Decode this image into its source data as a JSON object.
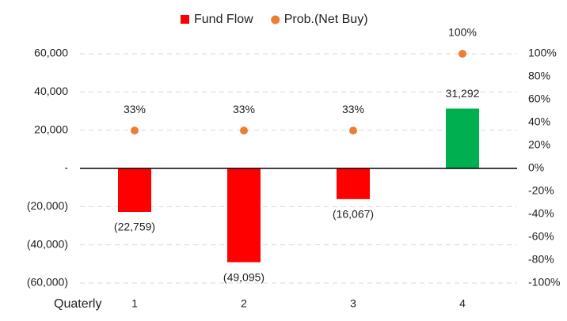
{
  "chart_data": {
    "type": "bar",
    "xlabel": "Quaterly",
    "categories": [
      "1",
      "2",
      "3",
      "4"
    ],
    "series": [
      {
        "name": "Fund Flow",
        "type": "bar",
        "color": "#ff0000",
        "colors": [
          "#ff0000",
          "#ff0000",
          "#ff0000",
          "#00b050"
        ],
        "values": [
          -22759,
          -49095,
          -16067,
          31292
        ],
        "value_labels": [
          "(22,759)",
          "(49,095)",
          "(16,067)",
          "31,292"
        ]
      },
      {
        "name": "Prob.(Net Buy)",
        "type": "scatter",
        "color": "#ed7d31",
        "axis": "y2",
        "values": [
          33,
          33,
          33,
          100
        ],
        "value_labels": [
          "33%",
          "33%",
          "33%",
          "100%"
        ]
      }
    ],
    "ylim": [
      -60000,
      60000
    ],
    "yticks": [
      {
        "value": 60000,
        "label": "60,000"
      },
      {
        "value": 40000,
        "label": "40,000"
      },
      {
        "value": 20000,
        "label": "20,000"
      },
      {
        "value": 0,
        "label": "-"
      },
      {
        "value": -20000,
        "label": "(20,000)"
      },
      {
        "value": -40000,
        "label": "(40,000)"
      },
      {
        "value": -60000,
        "label": "(60,000)"
      }
    ],
    "y2lim": [
      -100,
      100
    ],
    "y2ticks": [
      {
        "value": 100,
        "label": "100%"
      },
      {
        "value": 80,
        "label": "80%"
      },
      {
        "value": 60,
        "label": "60%"
      },
      {
        "value": 40,
        "label": "40%"
      },
      {
        "value": 20,
        "label": "20%"
      },
      {
        "value": 0,
        "label": "0%"
      },
      {
        "value": -20,
        "label": "-20%"
      },
      {
        "value": -40,
        "label": "-40%"
      },
      {
        "value": -60,
        "label": "-60%"
      },
      {
        "value": -80,
        "label": "-80%"
      },
      {
        "value": -100,
        "label": "-100%"
      }
    ],
    "grid": true
  }
}
